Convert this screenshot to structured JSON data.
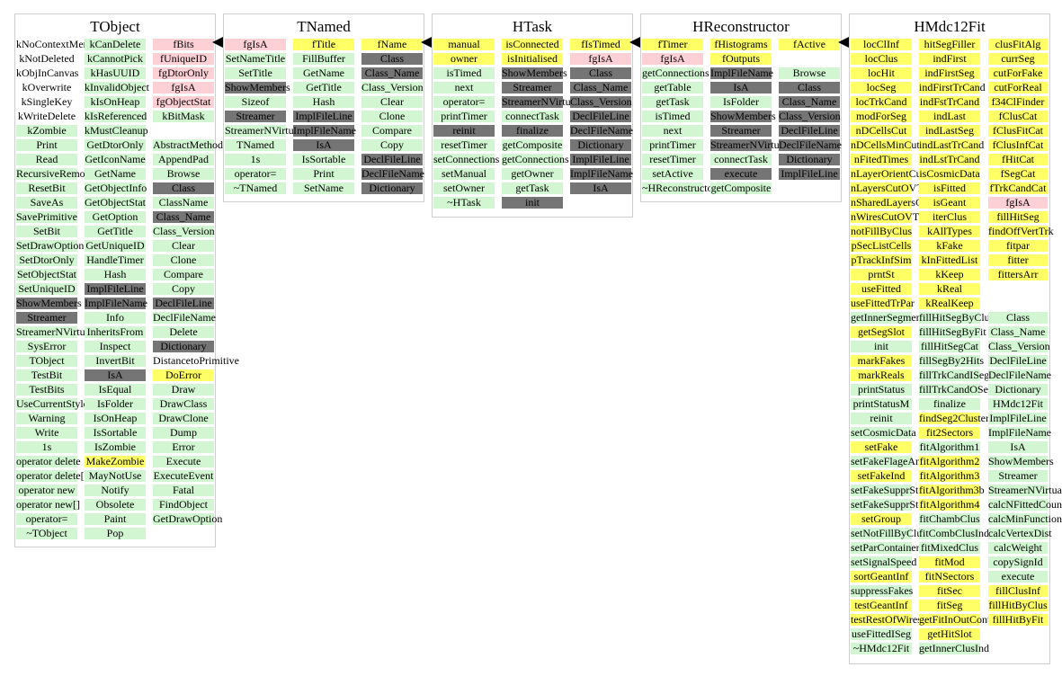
{
  "classes": [
    {
      "name": "TObject",
      "cols": [
        [
          "kNoContextMenu|w",
          "kNotDeleted|w",
          "kObjInCanvas|w",
          "kOverwrite|w",
          "kSingleKey|w",
          "kWriteDelete|w",
          "kZombie|m",
          "Print|m",
          "Read|m",
          "RecursiveRemove|m",
          "ResetBit|m",
          "SaveAs|m",
          "SavePrimitive|m",
          "SetBit|m",
          "SetDrawOption|m",
          "SetDtorOnly|m",
          "SetObjectStat|m",
          "SetUniqueID|m",
          "ShowMembers|i",
          "Streamer|i",
          "StreamerNVirtual|m",
          "SysError|m",
          "TObject|m",
          "TestBit|m",
          "TestBits|m",
          "UseCurrentStyle|m",
          "Warning|m",
          "Write|m",
          "1s|m",
          "operator delete|m",
          "operator delete[]|m",
          "operator new|m",
          "operator new[]|m",
          "operator=|m",
          "~TObject|m"
        ],
        [
          "kCanDelete|m",
          "kCannotPick|m",
          "kHasUUID|m",
          "kInvalidObject|m",
          "kIsOnHeap|m",
          "kIsReferenced|m",
          "kMustCleanup|m",
          "GetDtorOnly|m",
          "GetIconName|m",
          "GetName|m",
          "GetObjectInfo|m",
          "GetObjectStat|m",
          "GetOption|m",
          "GetTitle|m",
          "GetUniqueID|m",
          "HandleTimer|m",
          "Hash|m",
          "ImplFileLine|i",
          "ImplFileName|i",
          "Info|m",
          "InheritsFrom|m",
          "Inspect|m",
          "InvertBit|m",
          "IsA|i",
          "IsEqual|m",
          "IsFolder|m",
          "IsOnHeap|m",
          "IsSortable|m",
          "IsZombie|m",
          "MakeZombie|d",
          "MayNotUse|m",
          "Notify|m",
          "Obsolete|m",
          "Paint|m",
          "Pop|m"
        ],
        [
          "fBits|p",
          "fUniqueID|p",
          "fgDtorOnly|p",
          "fgIsA|p",
          "fgObjectStat|p",
          "kBitMask|m",
          "|w",
          "AbstractMethod|m",
          "AppendPad|m",
          "Browse|m",
          "Class|i",
          "ClassName|m",
          "Class_Name|i",
          "Class_Version|m",
          "Clear|m",
          "Clone|m",
          "Compare|m",
          "Copy|m",
          "DeclFileLine|i",
          "DeclFileName|m",
          "Delete|m",
          "Dictionary|i",
          "DistancetoPrimitive|w",
          "DoError|d",
          "Draw|m",
          "DrawClass|m",
          "DrawClone|m",
          "Dump|m",
          "Error|m",
          "Execute|m",
          "ExecuteEvent|m",
          "Fatal|m",
          "FindObject|m",
          "GetDrawOption|m"
        ]
      ]
    },
    {
      "name": "TNamed",
      "cols": [
        [
          "fgIsA|p",
          "SetNameTitle|m",
          "SetTitle|m",
          "ShowMembers|i",
          "Sizeof|m",
          "Streamer|i",
          "StreamerNVirtual|m",
          "TNamed|m",
          "1s|m",
          "operator=|m",
          "~TNamed|m"
        ],
        [
          "fTitle|d",
          "FillBuffer|m",
          "GetName|m",
          "GetTitle|m",
          "Hash|m",
          "ImplFileLine|i",
          "ImplFileName|i",
          "IsA|i",
          "IsSortable|m",
          "Print|m",
          "SetName|m"
        ],
        [
          "fName|d",
          "Class|i",
          "Class_Name|i",
          "Class_Version|m",
          "Clear|m",
          "Clone|m",
          "Compare|m",
          "Copy|m",
          "DeclFileLine|i",
          "DeclFileName|i",
          "Dictionary|i"
        ]
      ]
    },
    {
      "name": "HTask",
      "cols": [
        [
          "manual|d",
          "owner|d",
          "isTimed|m",
          "next|m",
          "operator=|m",
          "printTimer|m",
          "reinit|i",
          "resetTimer|m",
          "setConnections|m",
          "setManual|m",
          "setOwner|m",
          "~HTask|m"
        ],
        [
          "isConnected|d",
          "isInitialised|d",
          "ShowMembers|i",
          "Streamer|i",
          "StreamerNVirtual|i",
          "connectTask|m",
          "finalize|i",
          "getComposite|m",
          "getConnections|m",
          "getOwner|m",
          "getTask|m",
          "init|i"
        ],
        [
          "fIsTimed|d",
          "fgIsA|p",
          "Class|i",
          "Class_Name|i",
          "Class_Version|i",
          "DeclFileLine|i",
          "DeclFileName|i",
          "Dictionary|i",
          "ImplFileLine|i",
          "ImplFileName|i",
          "IsA|i"
        ]
      ]
    },
    {
      "name": "HReconstructor",
      "cols": [
        [
          "fTimer|d",
          "fgIsA|p",
          "getConnections|m",
          "getTable|m",
          "getTask|m",
          "isTimed|m",
          "next|m",
          "printTimer|m",
          "resetTimer|m",
          "setActive|m",
          "~HReconstructor|m"
        ],
        [
          "fHistograms|d",
          "fOutputs|d",
          "ImplFileName|i",
          "IsA|i",
          "IsFolder|m",
          "ShowMembers|i",
          "Streamer|i",
          "StreamerNVirtual|i",
          "connectTask|m",
          "execute|i",
          "getComposite|m"
        ],
        [
          "fActive|d",
          "|w",
          "Browse|m",
          "Class|i",
          "Class_Name|i",
          "Class_Version|i",
          "DeclFileLine|i",
          "DeclFileName|i",
          "Dictionary|i",
          "ImplFileLine|i"
        ]
      ]
    },
    {
      "name": "HMdc12Fit",
      "cols": [
        [
          "locClInf|d",
          "locClus|d",
          "locHit|d",
          "locSeg|d",
          "locTrkCand|d",
          "modForSeg|d",
          "nDCellsCut|d",
          "nDCellsMinCut|d",
          "nFitedTimes|d",
          "nLayerOrientCut|d",
          "nLayersCutOVT|d",
          "nSharedLayersCut|d",
          "nWiresCutOVT|d",
          "notFillByClus|d",
          "pSecListCells|d",
          "pTrackInfSim|d",
          "prntSt|d",
          "useFitted|d",
          "useFittedTrPar|d",
          "getInnerSegment|m",
          "getSegSlot|d",
          "init|m",
          "markFakes|d",
          "markReals|d",
          "printStatus|m",
          "printStatusM|m",
          "reinit|m",
          "setCosmicData|m",
          "setFake|d",
          "setFakeFlageAndInd|m",
          "setFakeInd|d",
          "setFakeSupprStep1Par|m",
          "setFakeSupprStep2Par|m",
          "setGroup|d",
          "setNotFillByClus|m",
          "setParContainers|m",
          "setSignalSpeed|m",
          "sortGeantInf|d",
          "suppressFakes|m",
          "testGeantInf|d",
          "testRestOfWires|d",
          "useFittedISeg|m",
          "~HMdc12Fit|m"
        ],
        [
          "hitSegFiller|d",
          "indFirst|d",
          "indFirstSeg|d",
          "indFirstTrCand|d",
          "indFstTrCand|d",
          "indLast|d",
          "indLastSeg|d",
          "indLastTrCand|d",
          "indLstTrCand|d",
          "isCosmicData|d",
          "isFitted|d",
          "isGeant|d",
          "iterClus|d",
          "kAllTypes|d",
          "kFake|d",
          "kInFittedList|d",
          "kKeep|d",
          "kReal|d",
          "kRealKeep|d",
          "fillHitSegByClus|m",
          "fillHitSegByFit|m",
          "fillHitSegCat|m",
          "fillSegBy2Hits|m",
          "fillTrkCandISeg|m",
          "fillTrkCandOSeg|m",
          "finalize|m",
          "findSeg2Clusters|d",
          "fit2Sectors|d",
          "fitAlgorithm1|m",
          "fitAlgorithm2|d",
          "fitAlgorithm3|d",
          "fitAlgorithm3b|d",
          "fitAlgorithm4|d",
          "fitChambClus|m",
          "fitCombClusIndFit|m",
          "fitMixedClus|m",
          "fitMod|d",
          "fitNSectors|d",
          "fitSec|d",
          "fitSeg|d",
          "getFitInOutCont|d",
          "getHitSlot|d",
          "getInnerClusInd|m"
        ],
        [
          "clusFitAlg|d",
          "currSeg|d",
          "cutForFake|d",
          "cutForReal|d",
          "f34ClFinder|d",
          "fClusCat|d",
          "fClusFitCat|d",
          "fClusInfCat|d",
          "fHitCat|d",
          "fSegCat|d",
          "fTrkCandCat|d",
          "fgIsA|p",
          "fillHitSeg|d",
          "findOffVertTrk|d",
          "fitpar|d",
          "fitter|d",
          "fittersArr|d",
          "|w",
          "|w",
          "Class|m",
          "Class_Name|m",
          "Class_Version|m",
          "DeclFileLine|m",
          "DeclFileName|m",
          "Dictionary|m",
          "HMdc12Fit|m",
          "ImplFileLine|m",
          "ImplFileName|m",
          "IsA|m",
          "ShowMembers|m",
          "Streamer|m",
          "StreamerNVirtual|m",
          "calcNFittedCount|m",
          "calcMinFunctional|m",
          "calcVertexDist|m",
          "calcWeight|m",
          "copySignId|m",
          "execute|m",
          "fillClusInf|d",
          "fillHitByClus|d",
          "fillHitByFit|d"
        ]
      ]
    }
  ]
}
